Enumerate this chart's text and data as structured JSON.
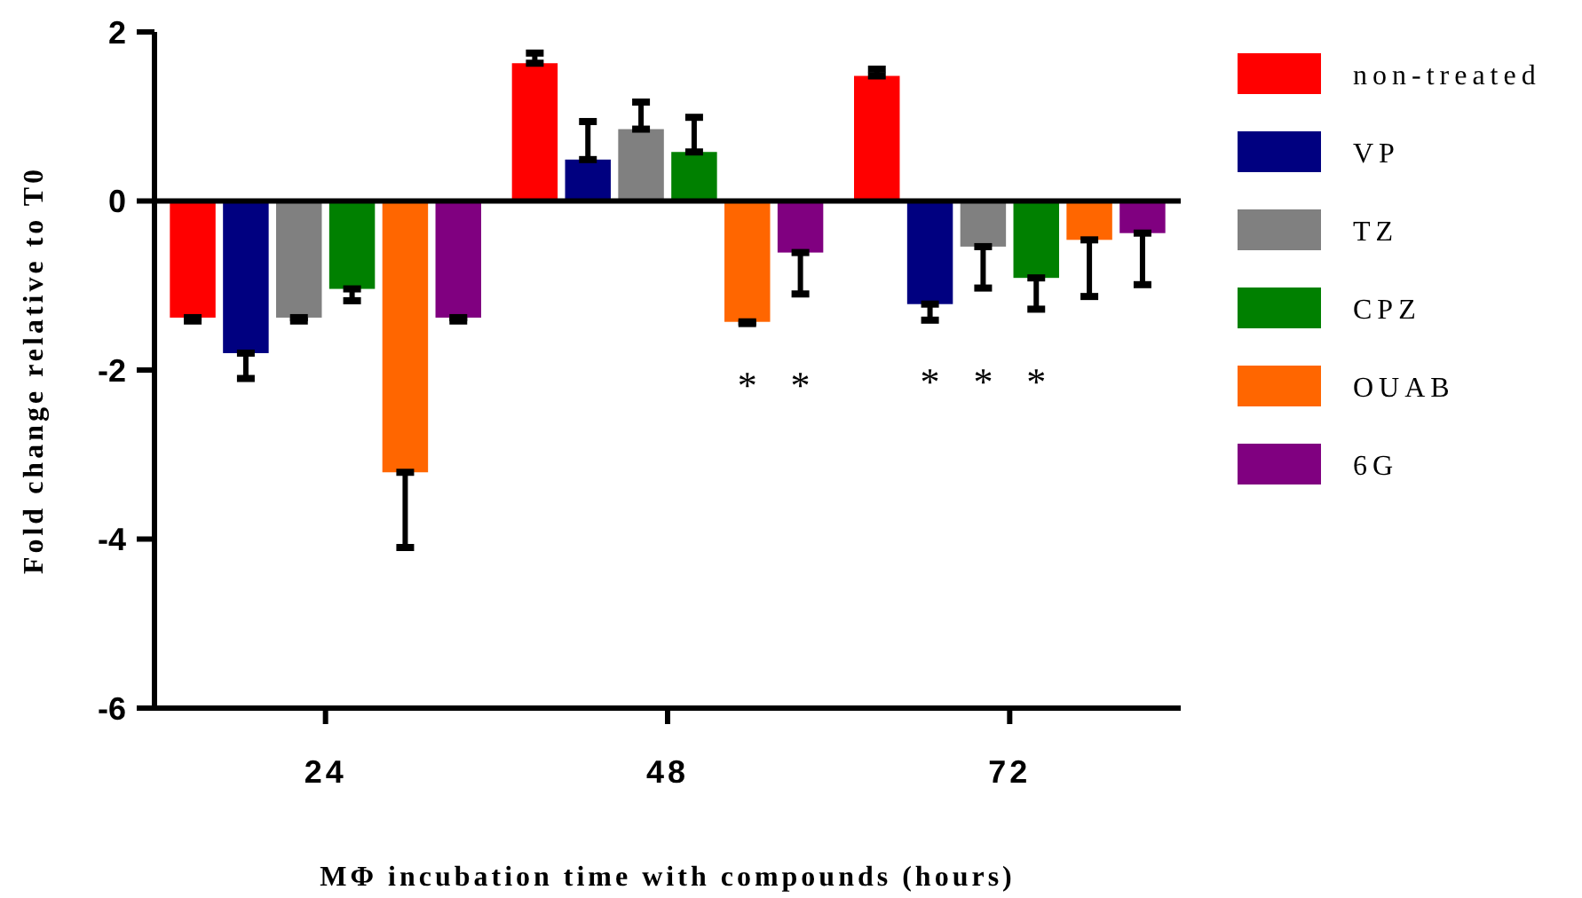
{
  "chart_data": {
    "type": "bar",
    "categories": [
      "24",
      "48",
      "72"
    ],
    "xlabel": "MΦ incubation time with compounds (hours)",
    "ylabel": "Fold change relative to T0",
    "ylim": [
      -6,
      2
    ],
    "yticks": [
      -6,
      -4,
      -2,
      0,
      2
    ],
    "legend": "right",
    "series": [
      {
        "name": "non-treated",
        "color": "#ff0000",
        "values": [
          -1.38,
          1.63,
          1.48
        ],
        "errors": [
          [
            -1.42,
            -1.38
          ],
          [
            1.63,
            1.75
          ],
          [
            1.48,
            1.56
          ]
        ]
      },
      {
        "name": "VP",
        "color": "#000080",
        "values": [
          -1.8,
          0.49,
          -1.22
        ],
        "errors": [
          [
            -2.1,
            -1.8
          ],
          [
            0.49,
            0.94
          ],
          [
            -1.41,
            -1.22
          ]
        ],
        "value_labels": [
          null,
          null,
          "*"
        ]
      },
      {
        "name": "TZ",
        "color": "#808080",
        "values": [
          -1.38,
          0.85,
          -0.54
        ],
        "errors": [
          [
            -1.42,
            -1.38
          ],
          [
            0.85,
            1.17
          ],
          [
            -1.03,
            -0.54
          ]
        ],
        "value_labels": [
          null,
          null,
          "*"
        ]
      },
      {
        "name": "CPZ",
        "color": "#008000",
        "values": [
          -1.04,
          0.58,
          -0.91
        ],
        "errors": [
          [
            -1.18,
            -1.04
          ],
          [
            0.58,
            0.99
          ],
          [
            -1.28,
            -0.91
          ]
        ],
        "value_labels": [
          null,
          null,
          "*"
        ]
      },
      {
        "name": "OUAB",
        "color": "#ff6600",
        "values": [
          -3.21,
          -1.43,
          -0.46
        ],
        "errors": [
          [
            -4.1,
            -3.21
          ],
          [
            -1.45,
            -1.43
          ],
          [
            -1.13,
            -0.46
          ]
        ],
        "value_labels": [
          null,
          "*",
          null
        ]
      },
      {
        "name": "6G",
        "color": "#800080",
        "values": [
          -1.38,
          -0.61,
          -0.38
        ],
        "errors": [
          [
            -1.42,
            -1.38
          ],
          [
            -1.1,
            -0.61
          ],
          [
            -0.99,
            -0.38
          ]
        ],
        "value_labels": [
          null,
          "*",
          null
        ]
      }
    ]
  }
}
